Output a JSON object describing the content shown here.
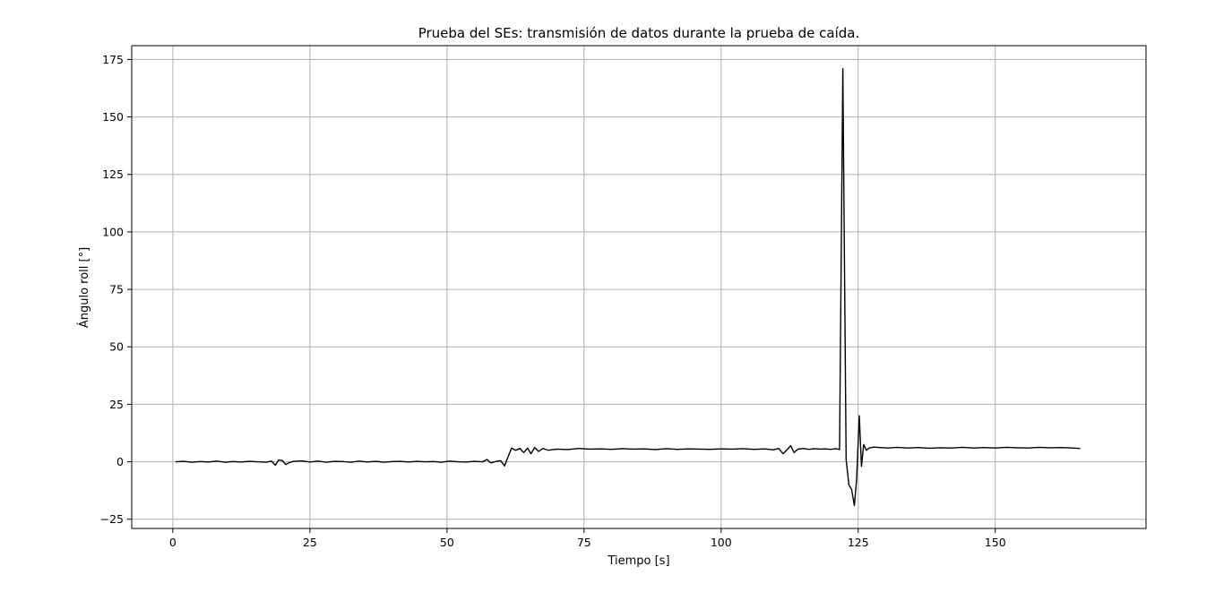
{
  "chart_data": {
    "type": "line",
    "title": "Prueba del SEs: transmisión de datos durante la prueba de caída.",
    "xlabel": "Tiempo [s]",
    "ylabel": "Ángulo roll [°]",
    "xlim": [
      -7.5,
      177.5
    ],
    "ylim": [
      -29,
      181
    ],
    "xticks": [
      0,
      25,
      50,
      75,
      100,
      125,
      150
    ],
    "xtick_labels": [
      "0",
      "25",
      "50",
      "75",
      "100",
      "125",
      "150"
    ],
    "yticks": [
      -25,
      0,
      25,
      50,
      75,
      100,
      125,
      150,
      175
    ],
    "ytick_labels": [
      "−25",
      "0",
      "25",
      "50",
      "75",
      "100",
      "125",
      "150",
      "175"
    ],
    "grid": true,
    "line_color": "#000000",
    "series": [
      {
        "x": [
          0.5,
          2,
          3.5,
          5,
          6.5,
          8,
          9.5,
          11,
          12.5,
          14,
          15.5,
          17,
          18,
          18.7,
          19.3,
          20,
          20.6,
          21.2,
          22,
          23.5,
          25,
          26.5,
          28,
          29.5,
          31,
          32.5,
          34,
          35.5,
          37,
          38.5,
          40,
          41.5,
          43,
          44.5,
          46,
          47.5,
          49,
          50.5,
          52,
          53.5,
          55,
          56.5,
          57.3,
          58,
          59,
          59.8,
          60.5,
          61.2,
          61.8,
          62.5,
          63.3,
          64,
          64.7,
          65.3,
          66,
          66.7,
          67.5,
          68.5,
          70,
          72,
          74,
          76,
          78,
          80,
          82,
          84,
          86,
          88,
          90,
          92,
          94,
          96,
          98,
          100,
          102,
          104,
          106,
          108,
          109.5,
          110.5,
          111.3,
          112,
          112.7,
          113.3,
          114,
          115,
          116,
          117,
          118,
          119,
          120,
          121,
          121.6,
          122.2,
          122.8,
          123.3,
          123.8,
          124.3,
          124.7,
          125.2,
          125.6,
          126,
          126.5,
          127,
          127.8,
          129,
          130.5,
          132,
          134,
          136,
          138,
          140,
          142,
          144,
          146,
          148,
          150,
          152,
          154,
          156,
          158,
          160,
          162,
          164,
          165.5
        ],
        "y": [
          0,
          0.2,
          -0.2,
          0.1,
          -0.1,
          0.3,
          -0.2,
          0.1,
          -0.1,
          0.2,
          0,
          -0.2,
          0.3,
          -1.5,
          0.8,
          0.5,
          -1.2,
          -0.4,
          0.2,
          0.4,
          -0.1,
          0.3,
          -0.2,
          0.2,
          0.1,
          -0.2,
          0.3,
          -0.1,
          0.2,
          -0.2,
          0.1,
          0.2,
          -0.1,
          0.2,
          0,
          0.1,
          -0.2,
          0.3,
          0,
          -0.1,
          0.2,
          0,
          1,
          -0.5,
          0.2,
          0.5,
          -1.8,
          2.5,
          6,
          5,
          5.8,
          4,
          6,
          3.5,
          6.2,
          4.5,
          5.8,
          5,
          5.5,
          5.3,
          5.8,
          5.5,
          5.6,
          5.4,
          5.7,
          5.5,
          5.6,
          5.3,
          5.7,
          5.4,
          5.6,
          5.5,
          5.4,
          5.6,
          5.5,
          5.7,
          5.4,
          5.6,
          5.2,
          5.8,
          3.5,
          5.2,
          7,
          4,
          5.5,
          5.8,
          5.4,
          5.7,
          5.5,
          5.6,
          5.4,
          5.7,
          5.3,
          171,
          1,
          -10,
          -12,
          -19,
          -8,
          20,
          -2,
          7.5,
          5,
          6,
          6.4,
          6.2,
          6,
          6.3,
          6,
          6.2,
          5.9,
          6.1,
          6,
          6.3,
          6,
          6.2,
          6,
          6.3,
          6.1,
          6,
          6.3,
          6.1,
          6.2,
          6,
          5.8
        ]
      }
    ]
  }
}
